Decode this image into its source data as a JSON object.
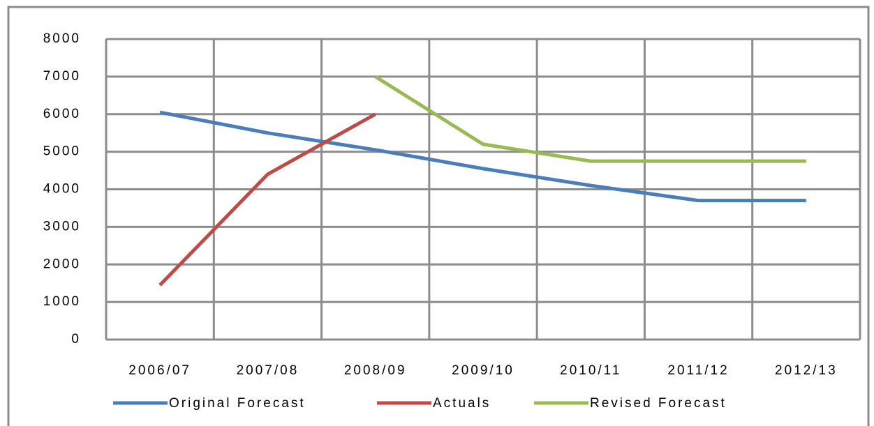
{
  "chart_data": {
    "type": "line",
    "categories": [
      "2006/07",
      "2007/08",
      "2008/09",
      "2009/10",
      "2010/11",
      "2011/12",
      "2012/13"
    ],
    "series": [
      {
        "name": "Original Forecast",
        "color": "#4a7ebb",
        "values": [
          6050,
          5500,
          5050,
          4550,
          4100,
          3700,
          3700
        ]
      },
      {
        "name": "Actuals",
        "color": "#be4b48",
        "values": [
          1450,
          4400,
          6000,
          null,
          null,
          null,
          null
        ]
      },
      {
        "name": "Revised Forecast",
        "color": "#98b954",
        "values": [
          null,
          null,
          7000,
          5200,
          4750,
          4750,
          4750
        ]
      }
    ],
    "ylim": [
      0,
      8000
    ],
    "yticks": [
      0,
      1000,
      2000,
      3000,
      4000,
      5000,
      6000,
      7000,
      8000
    ],
    "grid": true,
    "legend": "bottom"
  }
}
